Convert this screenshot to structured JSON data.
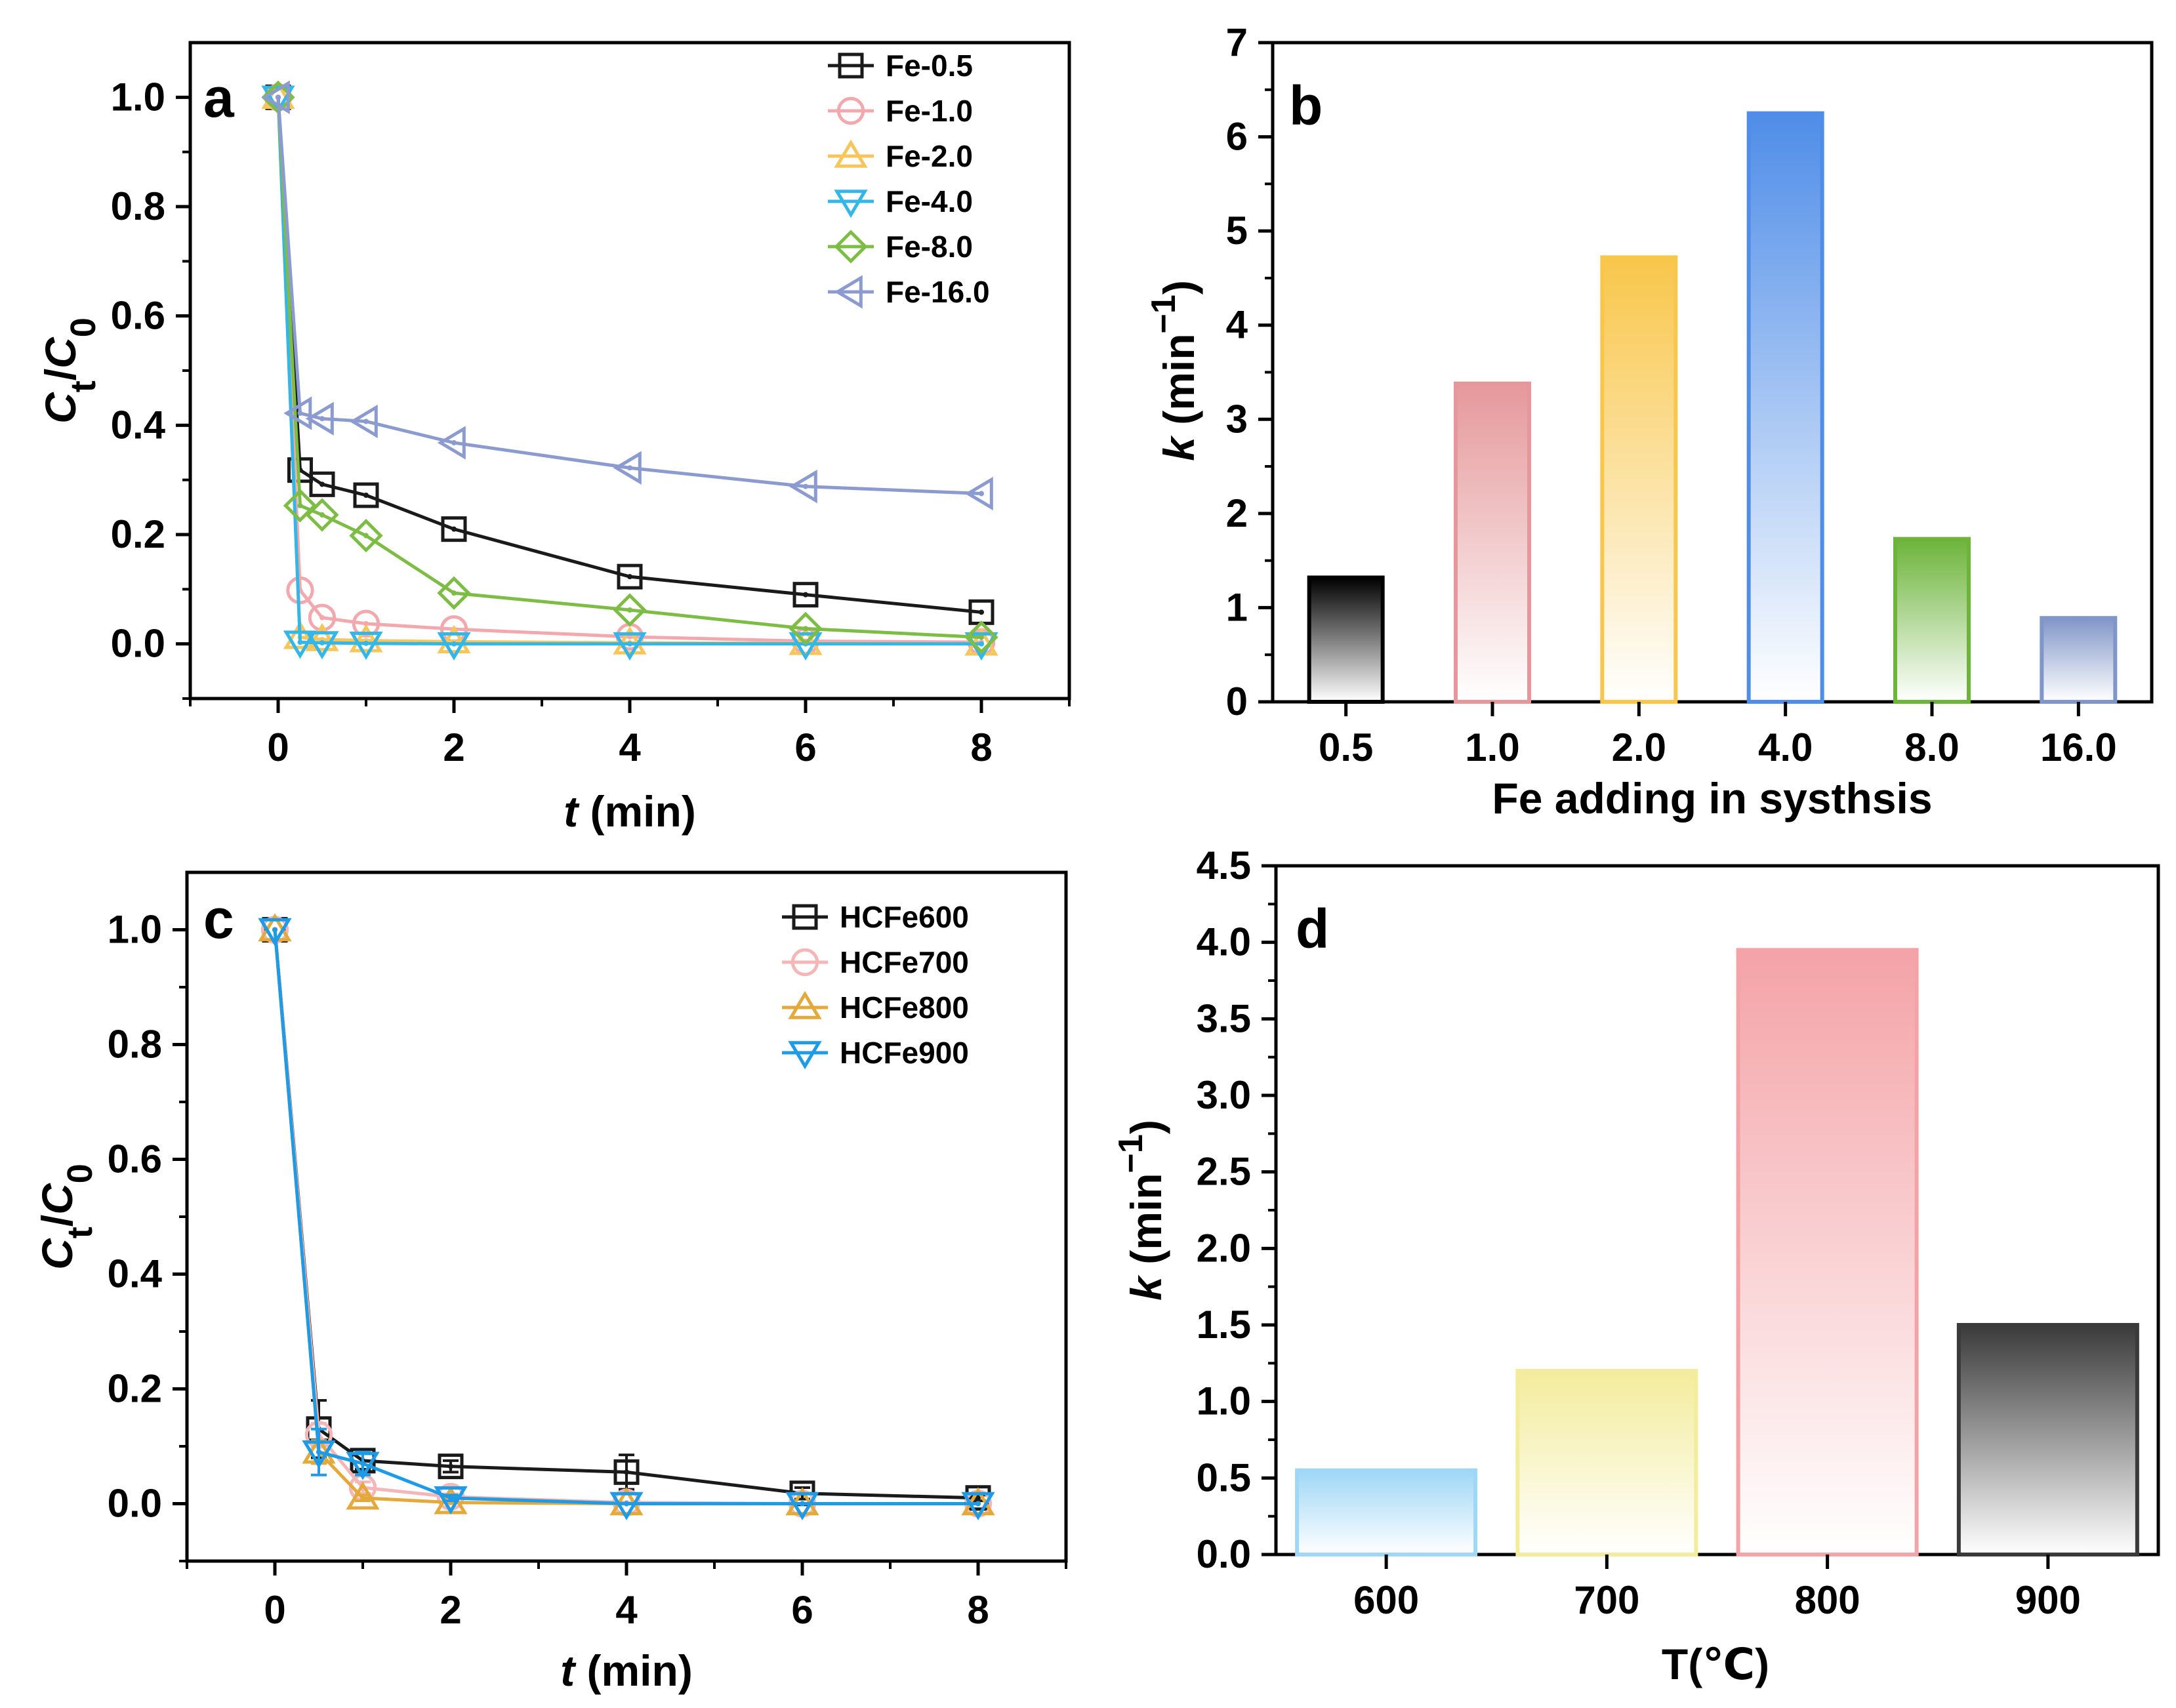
{
  "chart_data": [
    {
      "id": "a",
      "type": "line",
      "panel_letter": "a",
      "xlabel_italic": "t",
      "xlabel_rest": " (min)",
      "ylabel_main": "C",
      "ylabel_sub_top": "t",
      "ylabel_sep": "/",
      "ylabel_main2": "C",
      "ylabel_sub_bottom": "0",
      "xlim": [
        -1,
        9
      ],
      "ylim": [
        -0.1,
        1.1
      ],
      "xticks": [
        0,
        2,
        4,
        6,
        8
      ],
      "xtick_labels": [
        "0",
        "2",
        "4",
        "6",
        "8"
      ],
      "yticks": [
        0.0,
        0.2,
        0.4,
        0.6,
        0.8,
        1.0
      ],
      "ytick_labels": [
        "0.0",
        "0.2",
        "0.4",
        "0.6",
        "0.8",
        "1.0"
      ],
      "legend_position": "top-right",
      "x": [
        0,
        0.25,
        0.5,
        1,
        2,
        4,
        6,
        8
      ],
      "series": [
        {
          "name": "Fe-0.5",
          "color": "#1a1a1a",
          "marker": "square",
          "values": [
            1.0,
            0.318,
            0.292,
            0.272,
            0.21,
            0.123,
            0.09,
            0.058
          ]
        },
        {
          "name": "Fe-1.0",
          "color": "#f2a8ac",
          "marker": "circle",
          "values": [
            1.0,
            0.098,
            0.048,
            0.037,
            0.027,
            0.013,
            0.005,
            0.003
          ]
        },
        {
          "name": "Fe-2.0",
          "color": "#f7c65a",
          "marker": "triangle-up",
          "values": [
            1.0,
            0.012,
            0.008,
            0.006,
            0.004,
            0.002,
            0.001,
            0.0
          ]
        },
        {
          "name": "Fe-4.0",
          "color": "#33b6e8",
          "marker": "triangle-down",
          "values": [
            1.0,
            0.003,
            0.002,
            0.001,
            0.0,
            0.0,
            0.0,
            0.0
          ]
        },
        {
          "name": "Fe-8.0",
          "color": "#7dbd45",
          "marker": "diamond",
          "values": [
            1.0,
            0.253,
            0.236,
            0.198,
            0.093,
            0.062,
            0.028,
            0.012
          ]
        },
        {
          "name": "Fe-16.0",
          "color": "#8b9bd0",
          "marker": "triangle-left",
          "values": [
            1.0,
            0.422,
            0.412,
            0.407,
            0.368,
            0.322,
            0.288,
            0.275
          ]
        }
      ]
    },
    {
      "id": "b",
      "type": "bar",
      "panel_letter": "b",
      "xlabel": "Fe adding in systhsis",
      "ylabel_italic": "k",
      "ylabel_rest": " (min",
      "ylabel_sup": "−1",
      "ylabel_close": ")",
      "ylim": [
        0,
        7
      ],
      "yticks": [
        0,
        1,
        2,
        3,
        4,
        5,
        6,
        7
      ],
      "ytick_labels": [
        "0",
        "1",
        "2",
        "3",
        "4",
        "5",
        "6",
        "7"
      ],
      "categories": [
        "0.5",
        "1.0",
        "2.0",
        "4.0",
        "8.0",
        "16.0"
      ],
      "values": [
        1.32,
        3.38,
        4.72,
        6.25,
        1.73,
        0.89
      ],
      "colors": [
        "#000000",
        "#e5989b",
        "#f8c64a",
        "#4f8de8",
        "#6cb43a",
        "#8196c8"
      ]
    },
    {
      "id": "c",
      "type": "line",
      "panel_letter": "c",
      "xlabel_italic": "t",
      "xlabel_rest": " (min)",
      "ylabel_main": "C",
      "ylabel_sub_top": "t",
      "ylabel_sep": "/",
      "ylabel_main2": "C",
      "ylabel_sub_bottom": "0",
      "xlim": [
        -1,
        9
      ],
      "ylim": [
        -0.1,
        1.1
      ],
      "xticks": [
        0,
        2,
        4,
        6,
        8
      ],
      "xtick_labels": [
        "0",
        "2",
        "4",
        "6",
        "8"
      ],
      "yticks": [
        0.0,
        0.2,
        0.4,
        0.6,
        0.8,
        1.0
      ],
      "ytick_labels": [
        "0.0",
        "0.2",
        "0.4",
        "0.6",
        "0.8",
        "1.0"
      ],
      "legend_position": "top-right",
      "x": [
        0,
        0.5,
        1,
        2,
        4,
        6,
        8
      ],
      "series": [
        {
          "name": "HCFe600",
          "color": "#1a1a1a",
          "marker": "square",
          "values": [
            1.0,
            0.13,
            0.075,
            0.065,
            0.055,
            0.018,
            0.01
          ],
          "errors": [
            0,
            0.05,
            0.015,
            0.01,
            0.03,
            0.01,
            0.005
          ]
        },
        {
          "name": "HCFe700",
          "color": "#f4b6b6",
          "marker": "circle",
          "values": [
            1.0,
            0.12,
            0.028,
            0.012,
            0.002,
            0.0,
            0.0
          ],
          "errors": [
            0,
            0.02,
            0.01,
            0.005,
            0,
            0,
            0
          ]
        },
        {
          "name": "HCFe800",
          "color": "#e3a93a",
          "marker": "triangle-up",
          "values": [
            1.0,
            0.09,
            0.01,
            0.002,
            0.0,
            0.0,
            0.0
          ],
          "errors": [
            0,
            0.02,
            0.005,
            0,
            0,
            0,
            0
          ]
        },
        {
          "name": "HCFe900",
          "color": "#1e9be6",
          "marker": "triangle-down",
          "values": [
            1.0,
            0.09,
            0.07,
            0.01,
            0.0,
            0.0,
            0.0
          ],
          "errors": [
            0,
            0.04,
            0.02,
            0.005,
            0,
            0,
            0
          ]
        }
      ]
    },
    {
      "id": "d",
      "type": "bar",
      "panel_letter": "d",
      "xlabel": "T(℃)",
      "ylabel_italic": "k",
      "ylabel_rest": " (min",
      "ylabel_sup": "−1",
      "ylabel_close": ")",
      "ylim": [
        0,
        4.5
      ],
      "yticks": [
        0.0,
        0.5,
        1.0,
        1.5,
        2.0,
        2.5,
        3.0,
        3.5,
        4.0,
        4.5
      ],
      "ytick_labels": [
        "0.0",
        "0.5",
        "1.0",
        "1.5",
        "2.0",
        "2.5",
        "3.0",
        "3.5",
        "4.0",
        "4.5"
      ],
      "categories": [
        "600",
        "700",
        "800",
        "900"
      ],
      "values": [
        0.55,
        1.2,
        3.95,
        1.5
      ],
      "colors": [
        "#9fd7f6",
        "#f3ec9c",
        "#f4a3a7",
        "#3a3a3a"
      ]
    }
  ]
}
